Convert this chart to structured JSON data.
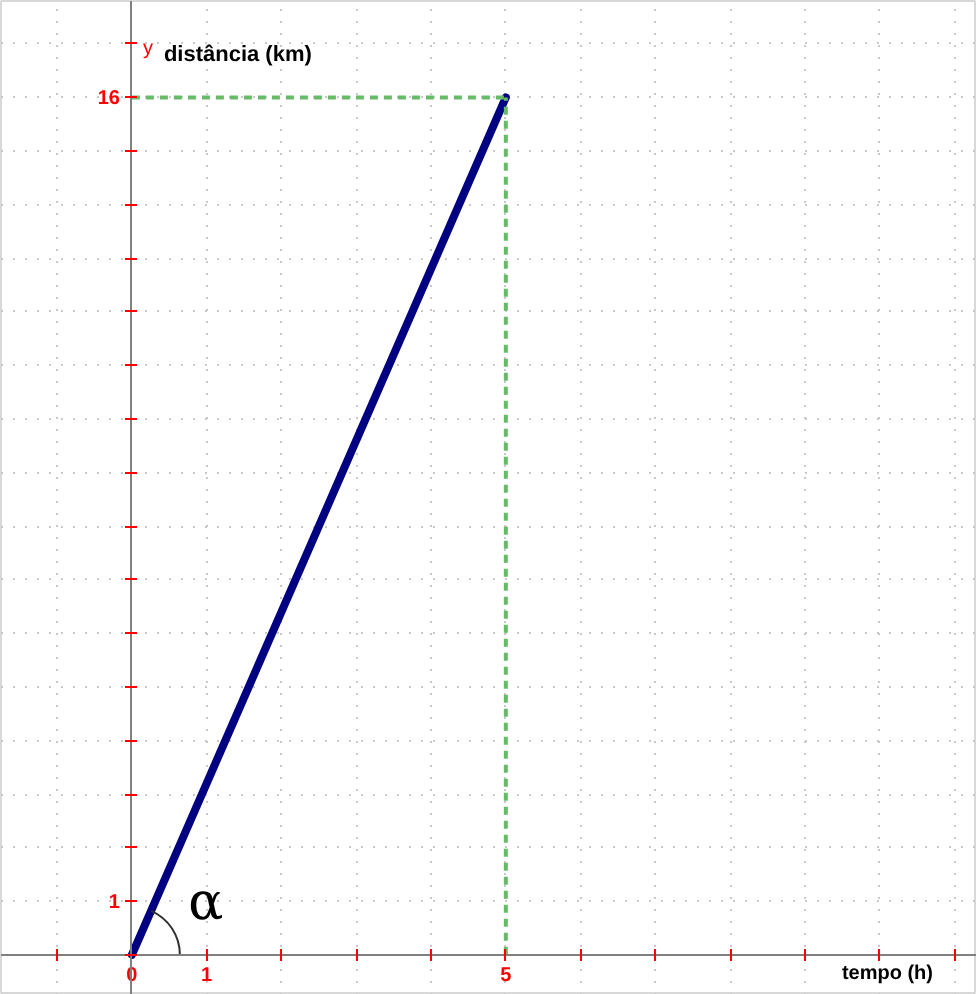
{
  "chart_data": {
    "type": "line",
    "xlabel": "tempo (h)",
    "ylabel": "distância (km)",
    "annotations": [
      "α",
      "y"
    ],
    "x": [
      0,
      5
    ],
    "series": [
      {
        "color": "#000080",
        "values": [
          0,
          16
        ]
      }
    ],
    "xlim": [
      -1.75,
      11.3
    ],
    "ylim": [
      -0.75,
      17.8
    ],
    "xticks": [
      {
        "value": -1,
        "label": null
      },
      0,
      1,
      {
        "value": 2,
        "label": null
      },
      {
        "value": 3,
        "label": null
      },
      {
        "value": 4,
        "label": null
      },
      5,
      {
        "value": 6,
        "label": null
      },
      {
        "value": 7,
        "label": null
      },
      {
        "value": 8,
        "label": null
      },
      {
        "value": 9,
        "label": null
      },
      {
        "value": 10,
        "label": null
      },
      {
        "value": 11,
        "label": null
      }
    ],
    "yticks": [
      {
        "value": 0,
        "label": null
      },
      1,
      {
        "value": 2,
        "label": null
      },
      {
        "value": 3,
        "label": null
      },
      {
        "value": 4,
        "label": null
      },
      {
        "value": 5,
        "label": null
      },
      {
        "value": 6,
        "label": null
      },
      {
        "value": 7,
        "label": null
      },
      {
        "value": 8,
        "label": null
      },
      {
        "value": 9,
        "label": null
      },
      {
        "value": 10,
        "label": null
      },
      {
        "value": 11,
        "label": null
      },
      {
        "value": 12,
        "label": null
      },
      {
        "value": 13,
        "label": null
      },
      {
        "value": 14,
        "label": null
      },
      {
        "value": 15,
        "label": null
      },
      16,
      {
        "value": 17,
        "label": null
      }
    ],
    "grid": true,
    "ref_lines": [
      {
        "axis": "x",
        "value": 5,
        "color": "#66bb66",
        "line_style": "dashed"
      },
      {
        "axis": "y",
        "value": 16,
        "color": "#66bb66",
        "line_style": "dashed"
      }
    ]
  }
}
